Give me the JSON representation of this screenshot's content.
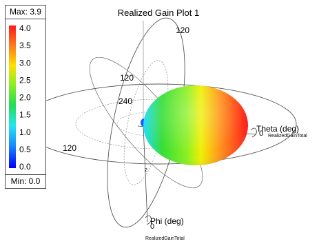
{
  "title": "Realized Gain Plot 1",
  "colors": {
    "scale_top": "#ff1a1a",
    "scale_mid": "#ffff00",
    "scale_green": "#33dd33",
    "scale_cyan": "#22ddff",
    "scale_bottom": "#0000ff",
    "ring_stroke": "#555555"
  },
  "chart_data": {
    "type": "3d-radiation-pattern",
    "title": "Realized Gain Plot 1",
    "quantity": "RealizedGainTotal",
    "max_label": "Max: 3.9",
    "min_label": "Min: 0.0",
    "max": 3.9,
    "min": 0.0,
    "colorbar_ticks": [
      "4.0",
      "3.5",
      "3.0",
      "2.5",
      "2.0",
      "1.5",
      "1.0",
      "0.5",
      "0.0"
    ],
    "angle_labels": [
      "120",
      "120",
      "240",
      "120"
    ],
    "axes": [
      {
        "name": "Theta (deg)",
        "tick": "0",
        "sub": "RealizedGainTotal"
      },
      {
        "name": "Phi (deg)",
        "tick": "0",
        "sub": "RealizedGainTotal"
      }
    ],
    "extra_tick": "2"
  }
}
